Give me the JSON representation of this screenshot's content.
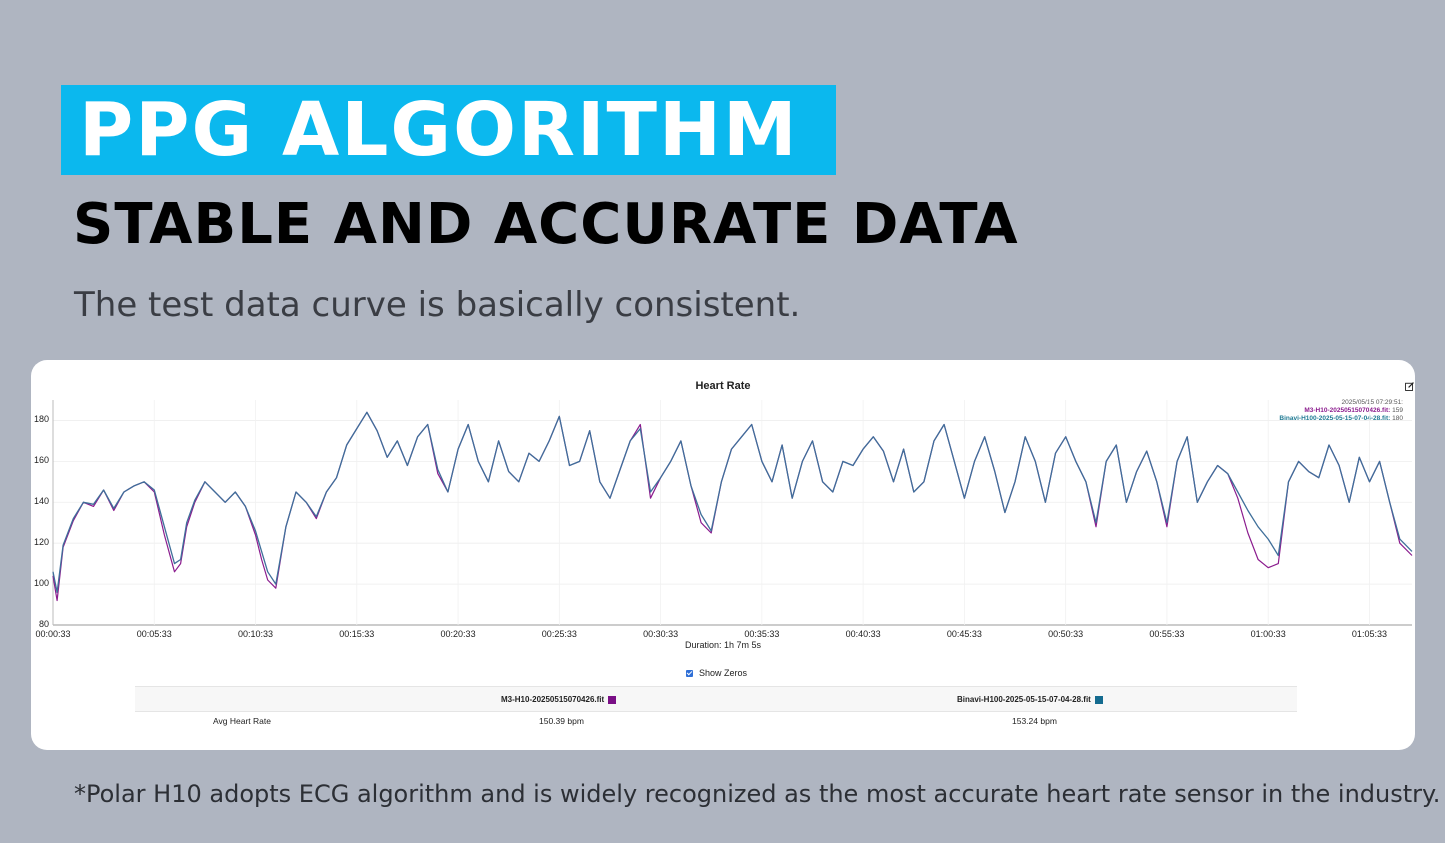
{
  "headline": "PPG ALGORITHM",
  "subheadline": "STABLE AND ACCURATE DATA",
  "tagline": "The test data curve is basically consistent.",
  "footnote": "*Polar H10 adopts ECG algorithm and is widely recognized as the most accurate heart rate sensor in the industry.",
  "colors": {
    "accent": "#0bb8ee",
    "background": "#afb5c1",
    "series_m3": "#8b1c8e",
    "series_binavi": "#3f6f9a"
  },
  "chart_data": {
    "type": "line",
    "title": "Heart Rate",
    "xlabel": "Duration: 1h 7m 5s",
    "ylim": [
      80,
      190
    ],
    "yticks": [
      "80",
      "100",
      "120",
      "140",
      "160",
      "180"
    ],
    "xticks": [
      "00:00:33",
      "00:05:33",
      "00:10:33",
      "00:15:33",
      "00:20:33",
      "00:25:33",
      "00:30:33",
      "00:35:33",
      "00:40:33",
      "00:45:33",
      "00:50:33",
      "00:55:33",
      "01:00:33",
      "01:05:33"
    ],
    "xrange_min": [
      0,
      67.1
    ],
    "tooltip": {
      "time": "2025/05/15 07:29:51:",
      "rows": [
        {
          "label": "M3-H10-20250515070426.fit:",
          "value": "159"
        },
        {
          "label": "Binavi-H100-2025-05-15-07-04-28.fit:",
          "value": "180"
        }
      ]
    },
    "series": [
      {
        "name": "M3-H10-20250515070426.fit",
        "x": [
          0,
          0.2,
          0.5,
          1,
          1.5,
          2,
          2.5,
          3,
          3.5,
          4,
          4.5,
          5,
          5.5,
          6,
          6.3,
          6.6,
          7,
          7.5,
          8,
          8.5,
          9,
          9.5,
          10,
          10.3,
          10.6,
          11,
          11.5,
          12,
          12.5,
          13,
          13.5,
          14,
          14.5,
          15,
          15.5,
          16,
          16.5,
          17,
          17.5,
          18,
          18.5,
          19,
          19.5,
          20,
          20.5,
          21,
          21.5,
          22,
          22.5,
          23,
          23.5,
          24,
          24.5,
          25,
          25.5,
          26,
          26.5,
          27,
          27.5,
          28,
          28.5,
          29,
          29.5,
          30,
          30.5,
          31,
          31.5,
          32,
          32.5,
          33,
          33.5,
          34,
          34.5,
          35,
          35.5,
          36,
          36.5,
          37,
          37.5,
          38,
          38.5,
          39,
          39.5,
          40,
          40.5,
          41,
          41.5,
          42,
          42.5,
          43,
          43.5,
          44,
          44.5,
          45,
          45.5,
          46,
          46.5,
          47,
          47.5,
          48,
          48.5,
          49,
          49.5,
          50,
          50.5,
          51,
          51.5,
          52,
          52.5,
          53,
          53.5,
          54,
          54.5,
          55,
          55.5,
          56,
          56.5,
          57,
          57.5,
          58,
          58.5,
          59,
          59.5,
          60,
          60.5,
          61,
          61.5,
          62,
          62.5,
          63,
          63.5,
          64,
          64.5,
          65,
          65.5,
          66,
          66.5,
          67.1
        ],
        "y": [
          104,
          92,
          118,
          131,
          140,
          138,
          146,
          136,
          145,
          148,
          150,
          145,
          124,
          106,
          110,
          128,
          140,
          150,
          145,
          140,
          145,
          138,
          124,
          112,
          102,
          98,
          128,
          145,
          140,
          132,
          145,
          152,
          168,
          176,
          184,
          175,
          162,
          170,
          158,
          172,
          178,
          154,
          145,
          166,
          178,
          160,
          150,
          170,
          155,
          150,
          164,
          160,
          170,
          182,
          158,
          160,
          175,
          150,
          142,
          156,
          170,
          178,
          142,
          152,
          160,
          170,
          148,
          130,
          125,
          150,
          166,
          172,
          178,
          160,
          150,
          168,
          142,
          160,
          170,
          150,
          145,
          160,
          158,
          166,
          172,
          165,
          150,
          166,
          145,
          150,
          170,
          178,
          160,
          142,
          160,
          172,
          155,
          135,
          150,
          172,
          160,
          140,
          164,
          172,
          160,
          150,
          128,
          160,
          168,
          140,
          155,
          165,
          150,
          128,
          160,
          172,
          140,
          150,
          158,
          154,
          142,
          125,
          112,
          108,
          110,
          150,
          160,
          155,
          152,
          168,
          158,
          140,
          162,
          150,
          160,
          140,
          120,
          114
        ]
      },
      {
        "name": "Binavi-H100-2025-05-15-07-04-28.fit",
        "x": [
          0,
          0.2,
          0.5,
          1,
          1.5,
          2,
          2.5,
          3,
          3.5,
          4,
          4.5,
          5,
          5.5,
          6,
          6.3,
          6.6,
          7,
          7.5,
          8,
          8.5,
          9,
          9.5,
          10,
          10.3,
          10.6,
          11,
          11.5,
          12,
          12.5,
          13,
          13.5,
          14,
          14.5,
          15,
          15.5,
          16,
          16.5,
          17,
          17.5,
          18,
          18.5,
          19,
          19.5,
          20,
          20.5,
          21,
          21.5,
          22,
          22.5,
          23,
          23.5,
          24,
          24.5,
          25,
          25.5,
          26,
          26.5,
          27,
          27.5,
          28,
          28.5,
          29,
          29.5,
          30,
          30.5,
          31,
          31.5,
          32,
          32.5,
          33,
          33.5,
          34,
          34.5,
          35,
          35.5,
          36,
          36.5,
          37,
          37.5,
          38,
          38.5,
          39,
          39.5,
          40,
          40.5,
          41,
          41.5,
          42,
          42.5,
          43,
          43.5,
          44,
          44.5,
          45,
          45.5,
          46,
          46.5,
          47,
          47.5,
          48,
          48.5,
          49,
          49.5,
          50,
          50.5,
          51,
          51.5,
          52,
          52.5,
          53,
          53.5,
          54,
          54.5,
          55,
          55.5,
          56,
          56.5,
          57,
          57.5,
          58,
          58.5,
          59,
          59.5,
          60,
          60.5,
          61,
          61.5,
          62,
          62.5,
          63,
          63.5,
          64,
          64.5,
          65,
          65.5,
          66,
          66.5,
          67.1
        ],
        "y": [
          106,
          96,
          119,
          132,
          140,
          139,
          146,
          137,
          145,
          148,
          150,
          146,
          128,
          110,
          112,
          130,
          141,
          150,
          145,
          140,
          145,
          138,
          126,
          116,
          106,
          100,
          128,
          145,
          140,
          133,
          145,
          152,
          168,
          176,
          184,
          175,
          162,
          170,
          158,
          172,
          178,
          156,
          145,
          166,
          178,
          160,
          150,
          170,
          155,
          150,
          164,
          160,
          170,
          182,
          158,
          160,
          175,
          150,
          142,
          156,
          170,
          176,
          145,
          152,
          160,
          170,
          148,
          134,
          126,
          150,
          166,
          172,
          178,
          160,
          150,
          168,
          142,
          160,
          170,
          150,
          145,
          160,
          158,
          166,
          172,
          165,
          150,
          166,
          145,
          150,
          170,
          178,
          160,
          142,
          160,
          172,
          155,
          135,
          150,
          172,
          160,
          140,
          164,
          172,
          160,
          150,
          130,
          160,
          168,
          140,
          155,
          165,
          150,
          130,
          160,
          172,
          140,
          150,
          158,
          154,
          145,
          136,
          128,
          122,
          114,
          150,
          160,
          155,
          152,
          168,
          158,
          140,
          162,
          150,
          160,
          140,
          122,
          116
        ]
      }
    ],
    "stats": {
      "row_label": "Avg Heart Rate",
      "columns": [
        {
          "file": "M3-H10-20250515070426.fit",
          "value": "150.39 bpm",
          "color": "#7a0f86"
        },
        {
          "file": "Binavi-H100-2025-05-15-07-04-28.fit",
          "value": "153.24 bpm",
          "color": "#146b8f"
        }
      ]
    },
    "show_zeros_label": "Show Zeros",
    "show_zeros_checked": true
  }
}
